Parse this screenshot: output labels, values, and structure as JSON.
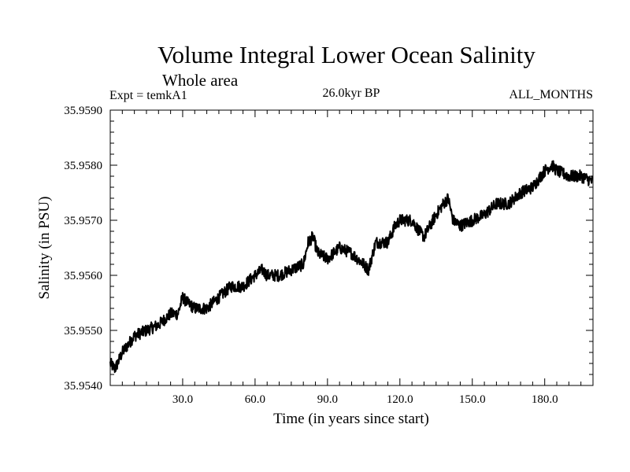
{
  "chart_data": {
    "type": "line",
    "title": "Volume Integral Lower Ocean Salinity",
    "subtitle": "Whole area",
    "experiment_label": "Expt = temkA1",
    "period_label": "26.0kyr BP",
    "months_label": "ALL_MONTHS",
    "xlabel": "Time (in years since start)",
    "ylabel": "Salinity (in PSU)",
    "xlim": [
      0,
      200
    ],
    "ylim": [
      35.954,
      35.959
    ],
    "x_ticks": [
      30,
      60,
      90,
      120,
      150,
      180
    ],
    "x_tick_labels": [
      "30.0",
      "60.0",
      "90.0",
      "120.0",
      "150.0",
      "180.0"
    ],
    "y_ticks": [
      35.954,
      35.955,
      35.956,
      35.957,
      35.958,
      35.959
    ],
    "y_tick_labels": [
      "35.9540",
      "35.9550",
      "35.9560",
      "35.9570",
      "35.9580",
      "35.9590"
    ],
    "grid": false,
    "series": [
      {
        "name": "Salinity",
        "color": "#000000",
        "x": [
          0,
          2,
          5,
          10,
          15,
          20,
          25,
          28,
          30,
          32,
          35,
          38,
          40,
          45,
          50,
          55,
          60,
          63,
          65,
          70,
          75,
          80,
          82,
          84,
          86,
          90,
          95,
          100,
          105,
          107,
          110,
          115,
          118,
          120,
          125,
          128,
          130,
          135,
          138,
          140,
          142,
          145,
          150,
          155,
          160,
          165,
          170,
          175,
          180,
          183,
          185,
          190,
          195,
          200
        ],
        "values": [
          35.9544,
          35.9543,
          35.9546,
          35.9549,
          35.955,
          35.9551,
          35.9553,
          35.9553,
          35.9556,
          35.9555,
          35.9554,
          35.9554,
          35.9554,
          35.9556,
          35.9558,
          35.9558,
          35.956,
          35.9561,
          35.956,
          35.956,
          35.9561,
          35.9562,
          35.9566,
          35.9567,
          35.9564,
          35.9563,
          35.9565,
          35.9564,
          35.9562,
          35.9561,
          35.9566,
          35.9566,
          35.9569,
          35.957,
          35.957,
          35.9568,
          35.9567,
          35.9571,
          35.9573,
          35.9574,
          35.957,
          35.9569,
          35.957,
          35.9571,
          35.9573,
          35.9573,
          35.9575,
          35.9576,
          35.9579,
          35.958,
          35.9579,
          35.9578,
          35.9578,
          35.9577
        ]
      }
    ]
  }
}
